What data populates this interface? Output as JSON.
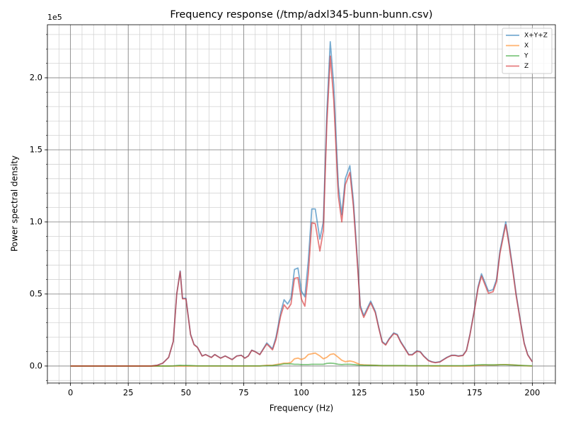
{
  "chart_data": {
    "type": "line",
    "title": "Frequency response (/tmp/adxl345-bunn-bunn.csv)",
    "xlabel": "Frequency (Hz)",
    "ylabel": "Power spectral density",
    "offset_text": "1e5",
    "x": [
      0,
      5,
      10,
      15,
      20,
      25,
      30,
      35,
      37.5,
      40,
      42.5,
      44.5,
      46,
      47.5,
      48.5,
      50,
      52,
      53.5,
      55,
      57,
      58.5,
      61,
      62.5,
      65,
      67,
      70,
      72,
      74,
      75.5,
      77,
      78.5,
      80,
      82,
      85,
      87.5,
      89,
      91,
      92.5,
      94,
      95.5,
      97,
      98.5,
      100,
      101.5,
      103,
      104.5,
      106,
      108,
      109.5,
      111,
      112.5,
      114,
      116,
      117.5,
      119,
      121,
      122.5,
      124,
      125.5,
      127,
      128.5,
      130,
      132,
      133.5,
      135,
      136.5,
      138,
      140,
      141.5,
      143,
      145,
      146.5,
      148,
      150,
      151.5,
      153,
      155,
      156.5,
      158,
      160,
      161.5,
      163,
      165,
      166.5,
      168,
      170,
      171.5,
      173,
      175,
      176.5,
      178,
      179.5,
      181,
      183,
      184.5,
      186,
      187.5,
      188.5,
      190,
      191.5,
      193,
      195,
      196.5,
      198,
      200
    ],
    "series": [
      {
        "name": "X+Y+Z",
        "color": "#1f77b4",
        "values": [
          0,
          0,
          0,
          0,
          0,
          0,
          0,
          0,
          500,
          2000,
          6000,
          17000,
          50000,
          66000,
          47000,
          47000,
          22000,
          15000,
          13000,
          7000,
          8000,
          6000,
          8000,
          5500,
          7000,
          4500,
          7000,
          7500,
          5500,
          7000,
          11000,
          10000,
          8000,
          16000,
          12000,
          20000,
          37000,
          46000,
          43000,
          47000,
          67000,
          68000,
          52000,
          48000,
          73000,
          109000,
          109000,
          88000,
          100000,
          175000,
          225000,
          195000,
          125000,
          105000,
          130000,
          139000,
          115000,
          80000,
          42000,
          35000,
          40000,
          45000,
          38000,
          27000,
          17000,
          15000,
          19000,
          23000,
          22000,
          17000,
          12000,
          8000,
          8000,
          10500,
          10000,
          7000,
          4000,
          3000,
          2500,
          3000,
          4500,
          6000,
          7500,
          7500,
          7000,
          7500,
          11000,
          22000,
          40000,
          55000,
          64000,
          58000,
          52000,
          53000,
          60000,
          80000,
          92000,
          100000,
          85000,
          68000,
          50000,
          30000,
          16000,
          8000,
          3000
        ]
      },
      {
        "name": "X",
        "color": "#ff7f0e",
        "values": [
          0,
          0,
          0,
          0,
          0,
          0,
          0,
          0,
          0,
          0,
          0,
          0,
          0,
          0,
          0,
          0,
          0,
          0,
          0,
          0,
          0,
          0,
          0,
          0,
          0,
          0,
          0,
          0,
          0,
          0,
          0,
          0,
          0,
          500,
          500,
          1000,
          1500,
          2000,
          2000,
          2500,
          5000,
          5500,
          4500,
          5500,
          8000,
          8500,
          9000,
          7000,
          5000,
          6000,
          8000,
          8500,
          6000,
          4000,
          3000,
          3500,
          3000,
          2000,
          1000,
          800,
          700,
          600,
          500,
          300,
          200,
          200,
          200,
          200,
          200,
          200,
          200,
          100,
          100,
          100,
          100,
          100,
          100,
          0,
          0,
          0,
          0,
          0,
          0,
          0,
          0,
          0,
          0,
          0,
          200,
          400,
          600,
          700,
          700,
          700,
          800,
          900,
          1000,
          1000,
          900,
          800,
          600,
          400,
          200,
          100,
          0
        ]
      },
      {
        "name": "Y",
        "color": "#2ca02c",
        "values": [
          0,
          0,
          0,
          0,
          0,
          0,
          0,
          0,
          0,
          0,
          0,
          100,
          300,
          500,
          400,
          400,
          300,
          200,
          100,
          100,
          100,
          100,
          100,
          100,
          100,
          100,
          100,
          100,
          100,
          100,
          100,
          100,
          100,
          200,
          300,
          600,
          1000,
          1500,
          1500,
          1500,
          1200,
          1200,
          1000,
          1000,
          1000,
          1200,
          1200,
          1200,
          1200,
          1800,
          2000,
          1800,
          1200,
          1000,
          1200,
          1200,
          1000,
          800,
          600,
          500,
          500,
          500,
          500,
          400,
          300,
          300,
          300,
          300,
          300,
          300,
          300,
          200,
          200,
          200,
          200,
          200,
          200,
          200,
          200,
          200,
          200,
          200,
          200,
          200,
          200,
          200,
          300,
          400,
          600,
          800,
          900,
          900,
          800,
          800,
          800,
          900,
          900,
          900,
          800,
          700,
          600,
          400,
          300,
          200,
          100
        ]
      },
      {
        "name": "Z",
        "color": "#d62728",
        "values": [
          0,
          0,
          0,
          0,
          0,
          0,
          0,
          0,
          500,
          2000,
          6000,
          16900,
          49700,
          65500,
          46600,
          46600,
          21700,
          14800,
          12900,
          6900,
          7900,
          5900,
          7900,
          5400,
          6900,
          4400,
          6900,
          7400,
          5400,
          6900,
          10900,
          9900,
          7900,
          15300,
          11200,
          18400,
          34500,
          42500,
          39500,
          43000,
          60800,
          61300,
          46500,
          41500,
          64000,
          99300,
          98800,
          79800,
          93800,
          167200,
          215000,
          184700,
          117800,
          100000,
          125800,
          134300,
          111000,
          77200,
          40400,
          33700,
          38800,
          43900,
          37000,
          26300,
          16500,
          14500,
          18500,
          22500,
          21500,
          16500,
          11500,
          7700,
          7700,
          10200,
          9700,
          6700,
          3700,
          2800,
          2300,
          2800,
          4300,
          5800,
          7300,
          7300,
          6800,
          7300,
          10700,
          21600,
          39200,
          53800,
          62500,
          56400,
          50500,
          51500,
          58400,
          78200,
          90100,
          98100,
          83300,
          66500,
          48800,
          29200,
          15500,
          7700,
          2900
        ]
      }
    ],
    "xlim": [
      -10,
      210
    ],
    "ylim": [
      -11800,
      236800
    ],
    "xticks": [
      0,
      25,
      50,
      75,
      100,
      125,
      150,
      175,
      200
    ],
    "yticks": [
      {
        "value": 0,
        "label": "0.0"
      },
      {
        "value": 50000,
        "label": "0.5"
      },
      {
        "value": 100000,
        "label": "1.0"
      },
      {
        "value": 150000,
        "label": "1.5"
      },
      {
        "value": 200000,
        "label": "2.0"
      }
    ],
    "x_minor_step": 5,
    "y_minor_step": 10000,
    "grid": true,
    "minor_grid": true,
    "legend": "upper right",
    "line_alpha": 0.6
  }
}
